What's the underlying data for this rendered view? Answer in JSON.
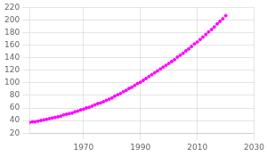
{
  "chart_data": {
    "type": "line",
    "x": [
      1951,
      1952,
      1953,
      1954,
      1955,
      1956,
      1957,
      1958,
      1959,
      1960,
      1961,
      1962,
      1963,
      1964,
      1965,
      1966,
      1967,
      1968,
      1969,
      1970,
      1971,
      1972,
      1973,
      1974,
      1975,
      1976,
      1977,
      1978,
      1979,
      1980,
      1981,
      1982,
      1983,
      1984,
      1985,
      1986,
      1987,
      1988,
      1989,
      1990,
      1991,
      1992,
      1993,
      1994,
      1995,
      1996,
      1997,
      1998,
      1999,
      2000,
      2001,
      2002,
      2003,
      2004,
      2005,
      2006,
      2007,
      2008,
      2009,
      2010,
      2011,
      2012,
      2013,
      2014,
      2015,
      2016,
      2017,
      2018,
      2019,
      2020
    ],
    "values": [
      37,
      38,
      38,
      39,
      40,
      41,
      42,
      43,
      44,
      45,
      46,
      47,
      49,
      50,
      51,
      52,
      54,
      55,
      57,
      58,
      60,
      61,
      63,
      65,
      67,
      68,
      70,
      72,
      74,
      76,
      79,
      81,
      83,
      86,
      88,
      91,
      93,
      96,
      99,
      101,
      104,
      107,
      110,
      113,
      116,
      119,
      122,
      125,
      128,
      131,
      134,
      137,
      141,
      144,
      147,
      151,
      154,
      158,
      162,
      165,
      169,
      173,
      177,
      181,
      185,
      189,
      194,
      198,
      202,
      207
    ],
    "color": "#ff00ff",
    "line_style": "dashed",
    "marker": "point",
    "xlim": [
      1951,
      2030
    ],
    "xticks": [
      1970,
      1990,
      2010,
      2030
    ],
    "ylim": [
      20,
      220
    ],
    "yticks": [
      20,
      40,
      60,
      80,
      100,
      120,
      140,
      160,
      180,
      200,
      220
    ],
    "grid": true
  }
}
